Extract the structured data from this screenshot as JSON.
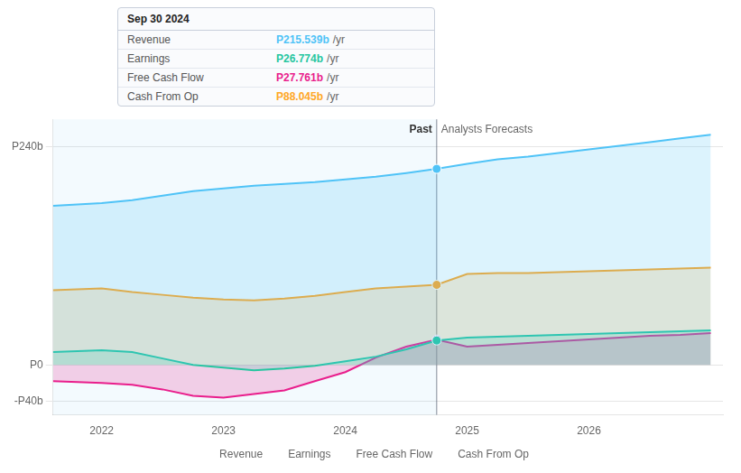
{
  "chart_data": {
    "type": "line",
    "x": [
      2021.6,
      2022.0,
      2022.25,
      2022.5,
      2022.75,
      2023.0,
      2023.25,
      2023.5,
      2023.75,
      2024.0,
      2024.25,
      2024.5,
      2024.75,
      2025.0,
      2025.25,
      2025.5,
      2025.75,
      2026.0,
      2026.25,
      2026.5,
      2026.75,
      2027.0
    ],
    "series": [
      {
        "name": "Revenue",
        "color": "#4fc3f7",
        "values": [
          175,
          178,
          181,
          186,
          191,
          194,
          197,
          199,
          201,
          204,
          207,
          211,
          215.5,
          221,
          226,
          229,
          233,
          237,
          241,
          245,
          249,
          253
        ]
      },
      {
        "name": "Earnings",
        "color": "#26c6a0",
        "values": [
          14,
          16,
          14,
          7,
          0,
          -3,
          -6,
          -4,
          -1,
          4,
          9,
          17,
          26.8,
          30,
          31,
          32,
          33,
          34,
          35,
          36,
          37,
          38
        ]
      },
      {
        "name": "Free Cash Flow",
        "color": "#e91e8c",
        "values": [
          -18,
          -20,
          -22,
          -27,
          -34,
          -36,
          -32,
          -28,
          -18,
          -8,
          8,
          20,
          27.8,
          20,
          22,
          24,
          26,
          28,
          30,
          32,
          33,
          35
        ]
      },
      {
        "name": "Cash From Op",
        "color": "#ffa726",
        "values": [
          82,
          84,
          80,
          77,
          74,
          72,
          71,
          73,
          76,
          80,
          84,
          86,
          88,
          100,
          101,
          101,
          102,
          103,
          104,
          105,
          106,
          107
        ]
      }
    ],
    "xlim": [
      2021.6,
      2027.1
    ],
    "xticks": [
      2022,
      2023,
      2024,
      2025,
      2026
    ],
    "ylim": [
      -55,
      270
    ],
    "yticks": [
      {
        "value": -40,
        "label": "-P40b"
      },
      {
        "value": 0,
        "label": "P0"
      },
      {
        "value": 240,
        "label": "P240b"
      }
    ],
    "grid": true,
    "legend": "bottom",
    "divider": {
      "x": 2024.75,
      "left_label": "Past",
      "right_label": "Analysts Forecasts"
    },
    "tooltip": {
      "title": "Sep 30 2024",
      "rows": [
        {
          "name": "Revenue",
          "label": "P215.539b"
        },
        {
          "name": "Earnings",
          "label": "P26.774b"
        },
        {
          "name": "Free Cash Flow",
          "label": "P27.761b"
        },
        {
          "name": "Cash From Op",
          "label": "P88.045b"
        }
      ],
      "unit": "/yr"
    }
  }
}
